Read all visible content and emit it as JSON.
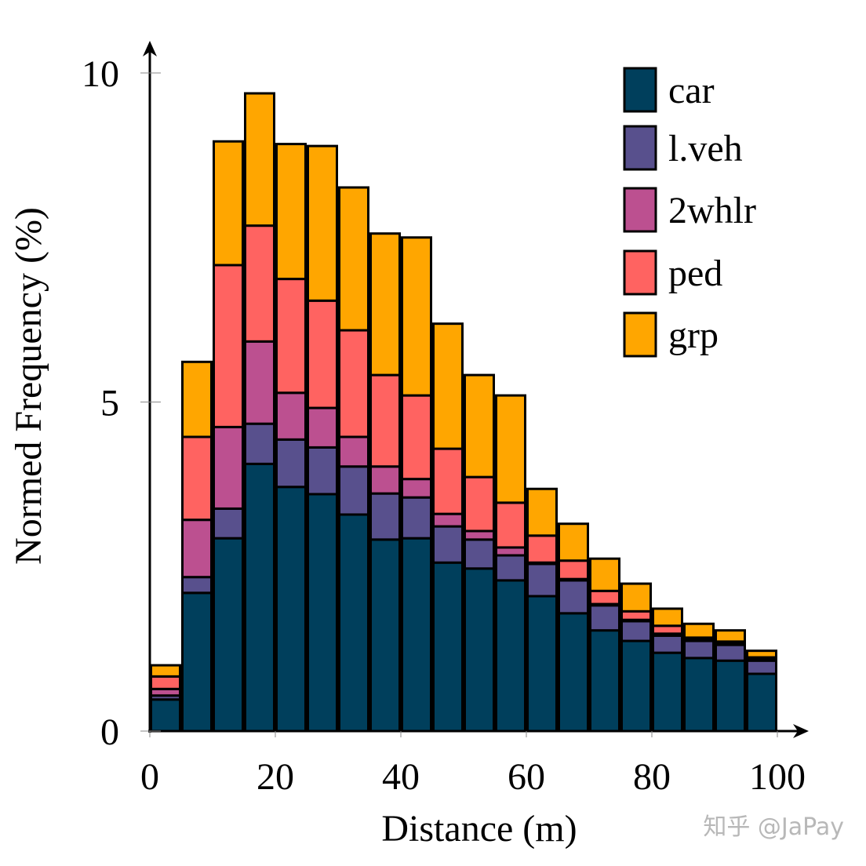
{
  "chart_data": {
    "type": "bar",
    "stacked": true,
    "xlabel": "Distance (m)",
    "ylabel": "Normed Frequency (%)",
    "xlim": [
      0,
      100
    ],
    "ylim": [
      0,
      10
    ],
    "xticks": [
      "0",
      "20",
      "40",
      "60",
      "80",
      "100"
    ],
    "yticks": [
      "0",
      "5",
      "10"
    ],
    "grid": false,
    "legend_position": "top-right",
    "bin_edges": [
      0,
      5,
      10,
      15,
      20,
      25,
      30,
      35,
      40,
      45,
      50,
      55,
      60,
      65,
      70,
      75,
      80,
      85,
      90,
      95,
      100
    ],
    "series": [
      {
        "name": "car",
        "color": "#003f5c",
        "values": [
          0.48,
          2.1,
          2.93,
          4.06,
          3.71,
          3.6,
          3.29,
          2.91,
          2.93,
          2.56,
          2.47,
          2.29,
          2.05,
          1.79,
          1.53,
          1.37,
          1.19,
          1.11,
          1.07,
          0.87
        ]
      },
      {
        "name": "l.veh",
        "color": "#58508d",
        "values": [
          0.06,
          0.24,
          0.45,
          0.61,
          0.72,
          0.71,
          0.73,
          0.7,
          0.62,
          0.55,
          0.44,
          0.38,
          0.49,
          0.5,
          0.38,
          0.3,
          0.26,
          0.26,
          0.24,
          0.2
        ]
      },
      {
        "name": "2whlr",
        "color": "#bc5090",
        "values": [
          0.1,
          0.87,
          1.24,
          1.25,
          0.71,
          0.6,
          0.45,
          0.41,
          0.28,
          0.19,
          0.13,
          0.12,
          0.02,
          0.02,
          0.02,
          0.02,
          0.03,
          0.02,
          0.02,
          0.03
        ]
      },
      {
        "name": "ped",
        "color": "#ff6361",
        "values": [
          0.19,
          1.26,
          2.46,
          1.76,
          1.73,
          1.63,
          1.62,
          1.39,
          1.27,
          0.99,
          0.82,
          0.68,
          0.41,
          0.28,
          0.2,
          0.13,
          0.12,
          0.03,
          0.03,
          0.02
        ]
      },
      {
        "name": "grp",
        "color": "#ffa600",
        "values": [
          0.17,
          1.14,
          1.88,
          2.01,
          2.05,
          2.35,
          2.17,
          2.15,
          2.4,
          1.9,
          1.55,
          1.63,
          0.71,
          0.56,
          0.49,
          0.42,
          0.26,
          0.21,
          0.17,
          0.1
        ]
      }
    ]
  },
  "watermark": "知乎 @JaPay"
}
